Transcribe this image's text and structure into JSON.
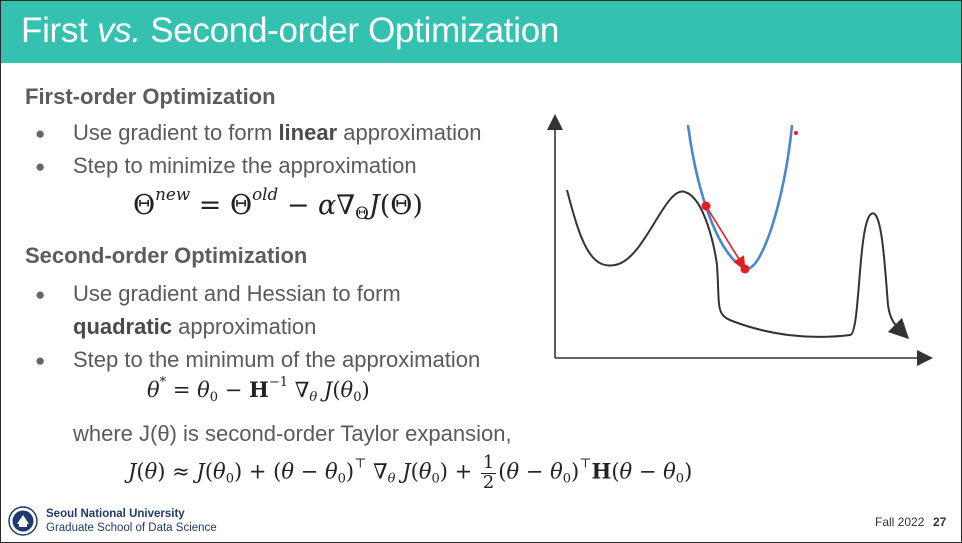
{
  "slide": {
    "title_pre": "First ",
    "title_vs": "vs.",
    "title_post": " Second-order Optimization"
  },
  "first_order": {
    "heading": "First-order Optimization",
    "bullet1_pre": "Use gradient to form ",
    "bullet1_bold": "linear",
    "bullet1_post": " approximation",
    "bullet2": "Step to minimize the approximation"
  },
  "second_order": {
    "heading": "Second-order Optimization",
    "bullet1_line1": "Use gradient and Hessian to form",
    "bullet1_bold": "quadratic",
    "bullet1_line2_post": " approximation",
    "bullet2": "Step to the minimum of the approximation",
    "taylor_note": "where J(θ) is second-order Taylor expansion,"
  },
  "bullet_glyph": "●",
  "footer": {
    "university": "Seoul National University",
    "school": "Graduate School of Data Science",
    "term": "Fall 2022",
    "page": "27"
  },
  "colors": {
    "title_bar": "#34c1b0",
    "curve": "#333333",
    "parabola": "#4a86d0",
    "point": "#e02020"
  }
}
